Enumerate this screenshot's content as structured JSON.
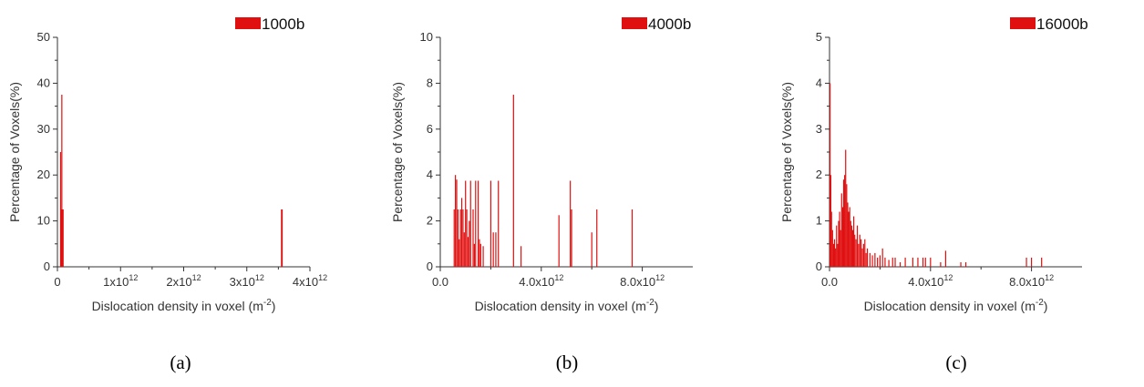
{
  "chart_data": [
    {
      "type": "bar",
      "caption": "(a)",
      "xlabel": "Dislocation density in voxel (m^-2)",
      "ylabel": "Percentage of Voxels(%)",
      "xlim": [
        0,
        4000000000000.0
      ],
      "ylim": [
        0,
        50
      ],
      "x_tick_values": [
        0,
        1000000000000.0,
        2000000000000.0,
        3000000000000.0,
        4000000000000.0
      ],
      "x_tick_labels": [
        {
          "base": "0",
          "exp": ""
        },
        {
          "base": "1x10",
          "exp": "12"
        },
        {
          "base": "2x10",
          "exp": "12"
        },
        {
          "base": "3x10",
          "exp": "12"
        },
        {
          "base": "4x10",
          "exp": "12"
        }
      ],
      "y_ticks": [
        0,
        10,
        20,
        30,
        40,
        50
      ],
      "legend": {
        "label": "1000b",
        "position": "top-right"
      },
      "color": "#e01010",
      "series": [
        {
          "name": "1000b",
          "x": [
            50000000000.0,
            60000000000.0,
            70000000000.0,
            80000000000.0,
            90000000000.0,
            3550000000000.0,
            3560000000000.0
          ],
          "values": [
            25,
            12.5,
            37.5,
            12.5,
            12.5,
            12.5,
            12.5
          ]
        }
      ]
    },
    {
      "type": "bar",
      "caption": "(b)",
      "xlabel": "Dislocation density in voxel (m^-2)",
      "ylabel": "Percentage of Voxels(%)",
      "xlim": [
        0,
        10000000000000.0
      ],
      "ylim": [
        0,
        10
      ],
      "x_tick_values": [
        0,
        4000000000000.0,
        8000000000000.0
      ],
      "x_tick_labels": [
        {
          "base": "0.0",
          "exp": ""
        },
        {
          "base": "4.0x10",
          "exp": "12"
        },
        {
          "base": "8.0x10",
          "exp": "12"
        }
      ],
      "y_ticks": [
        0,
        2,
        4,
        6,
        8,
        10
      ],
      "legend": {
        "label": "4000b",
        "position": "top-right"
      },
      "color": "#e01010",
      "series": [
        {
          "name": "4000b",
          "x": [
            550000000000.0,
            600000000000.0,
            650000000000.0,
            700000000000.0,
            750000000000.0,
            800000000000.0,
            850000000000.0,
            900000000000.0,
            950000000000.0,
            1000000000000.0,
            1050000000000.0,
            1100000000000.0,
            1150000000000.0,
            1200000000000.0,
            1300000000000.0,
            1350000000000.0,
            1400000000000.0,
            1500000000000.0,
            1550000000000.0,
            1600000000000.0,
            1700000000000.0,
            2000000000000.0,
            2100000000000.0,
            2200000000000.0,
            2300000000000.0,
            2900000000000.0,
            3200000000000.0,
            4700000000000.0,
            5150000000000.0,
            5200000000000.0,
            6000000000000.0,
            6200000000000.0,
            7600000000000.0
          ],
          "values": [
            2.5,
            4.0,
            3.8,
            2.5,
            1.2,
            2.5,
            3.0,
            2.5,
            1.5,
            3.75,
            2.5,
            1.3,
            2.0,
            3.75,
            2.5,
            1.0,
            3.75,
            3.75,
            1.2,
            1.0,
            0.9,
            3.75,
            1.5,
            1.5,
            3.75,
            7.5,
            0.9,
            2.25,
            3.75,
            2.5,
            1.5,
            2.5,
            2.5
          ]
        }
      ]
    },
    {
      "type": "bar",
      "caption": "(c)",
      "xlabel": "Dislocation density in voxel (m^-2)",
      "ylabel": "Percentage of Voxels(%)",
      "xlim": [
        0,
        10000000000000.0
      ],
      "ylim": [
        0,
        5
      ],
      "x_tick_values": [
        0,
        4000000000000.0,
        8000000000000.0
      ],
      "x_tick_labels": [
        {
          "base": "0.0",
          "exp": ""
        },
        {
          "base": "4.0x10",
          "exp": "12"
        },
        {
          "base": "8.0x10",
          "exp": "12"
        }
      ],
      "y_ticks": [
        0,
        1,
        2,
        3,
        4,
        5
      ],
      "legend": {
        "label": "16000b",
        "position": "top-right"
      },
      "color": "#e01010",
      "series": [
        {
          "name": "16000b",
          "x": [
            20000000000.0,
            50000000000.0,
            80000000000.0,
            120000000000.0,
            160000000000.0,
            200000000000.0,
            240000000000.0,
            280000000000.0,
            320000000000.0,
            360000000000.0,
            400000000000.0,
            440000000000.0,
            480000000000.0,
            520000000000.0,
            560000000000.0,
            600000000000.0,
            640000000000.0,
            680000000000.0,
            720000000000.0,
            760000000000.0,
            800000000000.0,
            840000000000.0,
            880000000000.0,
            920000000000.0,
            960000000000.0,
            1000000000000.0,
            1050000000000.0,
            1100000000000.0,
            1150000000000.0,
            1200000000000.0,
            1250000000000.0,
            1300000000000.0,
            1350000000000.0,
            1400000000000.0,
            1450000000000.0,
            1500000000000.0,
            1600000000000.0,
            1700000000000.0,
            1800000000000.0,
            1900000000000.0,
            2000000000000.0,
            2100000000000.0,
            2200000000000.0,
            2350000000000.0,
            2500000000000.0,
            2600000000000.0,
            2800000000000.0,
            3000000000000.0,
            3300000000000.0,
            3500000000000.0,
            3700000000000.0,
            3800000000000.0,
            4000000000000.0,
            4400000000000.0,
            4600000000000.0,
            5200000000000.0,
            5400000000000.0,
            7800000000000.0,
            8000000000000.0,
            8400000000000.0
          ],
          "values": [
            4.0,
            2.0,
            1.2,
            0.8,
            0.5,
            0.6,
            0.4,
            0.9,
            0.5,
            1.0,
            1.2,
            0.8,
            1.6,
            1.3,
            1.9,
            2.0,
            2.55,
            1.8,
            1.4,
            1.2,
            1.3,
            1.0,
            0.9,
            0.8,
            1.1,
            0.7,
            0.6,
            0.9,
            0.5,
            0.7,
            0.6,
            0.4,
            0.5,
            0.6,
            0.3,
            0.4,
            0.3,
            0.25,
            0.3,
            0.2,
            0.25,
            0.4,
            0.2,
            0.15,
            0.2,
            0.2,
            0.1,
            0.2,
            0.2,
            0.2,
            0.2,
            0.2,
            0.2,
            0.1,
            0.35,
            0.1,
            0.1,
            0.2,
            0.2,
            0.2
          ]
        }
      ]
    }
  ]
}
